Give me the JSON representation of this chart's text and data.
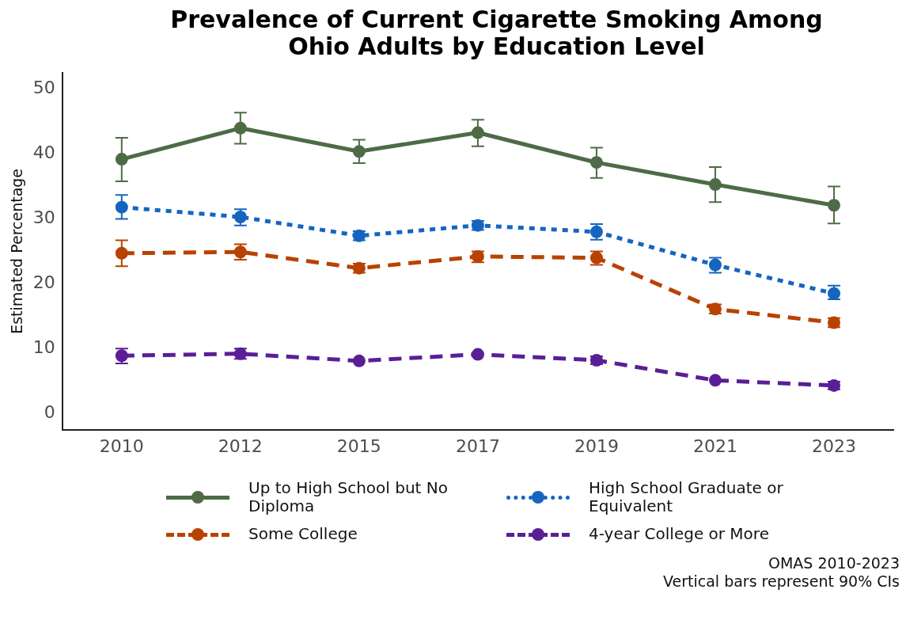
{
  "chart_data": {
    "type": "line",
    "title": "Prevalence of Current Cigarette Smoking Among Ohio Adults by Education Level",
    "ylabel": "Estimated Percentage",
    "categories": [
      "2010",
      "2012",
      "2015",
      "2017",
      "2019",
      "2021",
      "2023"
    ],
    "series": [
      {
        "name": "Up to High School but No Diploma",
        "color": "#4e6b47",
        "line_style": "solid",
        "values": [
          39.2,
          44.0,
          40.4,
          43.3,
          38.7,
          35.3,
          32.1
        ],
        "errors": [
          [
            35.8,
            42.5
          ],
          [
            41.6,
            46.4
          ],
          [
            38.6,
            42.2
          ],
          [
            41.2,
            45.3
          ],
          [
            36.3,
            41.0
          ],
          [
            32.6,
            38.0
          ],
          [
            29.3,
            35.0
          ]
        ]
      },
      {
        "name": "High School Graduate or Equivalent",
        "color": "#1565c0",
        "line_style": "dotted",
        "values": [
          31.8,
          30.3,
          27.4,
          29.0,
          28.0,
          22.9,
          18.5
        ],
        "errors": [
          [
            30.0,
            33.7
          ],
          [
            29.0,
            31.5
          ],
          [
            26.7,
            28.1
          ],
          [
            28.3,
            29.7
          ],
          [
            26.8,
            29.2
          ],
          [
            21.7,
            24.0
          ],
          [
            17.6,
            19.7
          ]
        ]
      },
      {
        "name": "Some College",
        "color": "#b84200",
        "line_style": "dashed",
        "values": [
          24.7,
          24.9,
          22.4,
          24.2,
          24.0,
          16.1,
          14.0
        ],
        "errors": [
          [
            22.7,
            26.7
          ],
          [
            23.7,
            26.1
          ],
          [
            21.7,
            23.1
          ],
          [
            23.3,
            25.0
          ],
          [
            22.9,
            25.0
          ],
          [
            15.4,
            16.8
          ],
          [
            13.3,
            14.7
          ]
        ]
      },
      {
        "name": "4-year College or More",
        "color": "#5a1e96",
        "line_style": "dashed",
        "values": [
          8.9,
          9.2,
          8.1,
          9.1,
          8.2,
          5.1,
          4.3
        ],
        "errors": [
          [
            7.7,
            10.0
          ],
          [
            8.4,
            10.0
          ],
          null,
          null,
          [
            7.6,
            8.8
          ],
          null,
          [
            3.7,
            4.9
          ]
        ]
      }
    ],
    "ylim": [
      -2.5,
      52.5
    ],
    "yticks": [
      0,
      10,
      20,
      30,
      40,
      50
    ],
    "grid": false,
    "legend": "bottom",
    "marker": "circle",
    "annotations": [
      "OMAS 2010-2023",
      "Vertical bars represent 90% CIs"
    ]
  }
}
